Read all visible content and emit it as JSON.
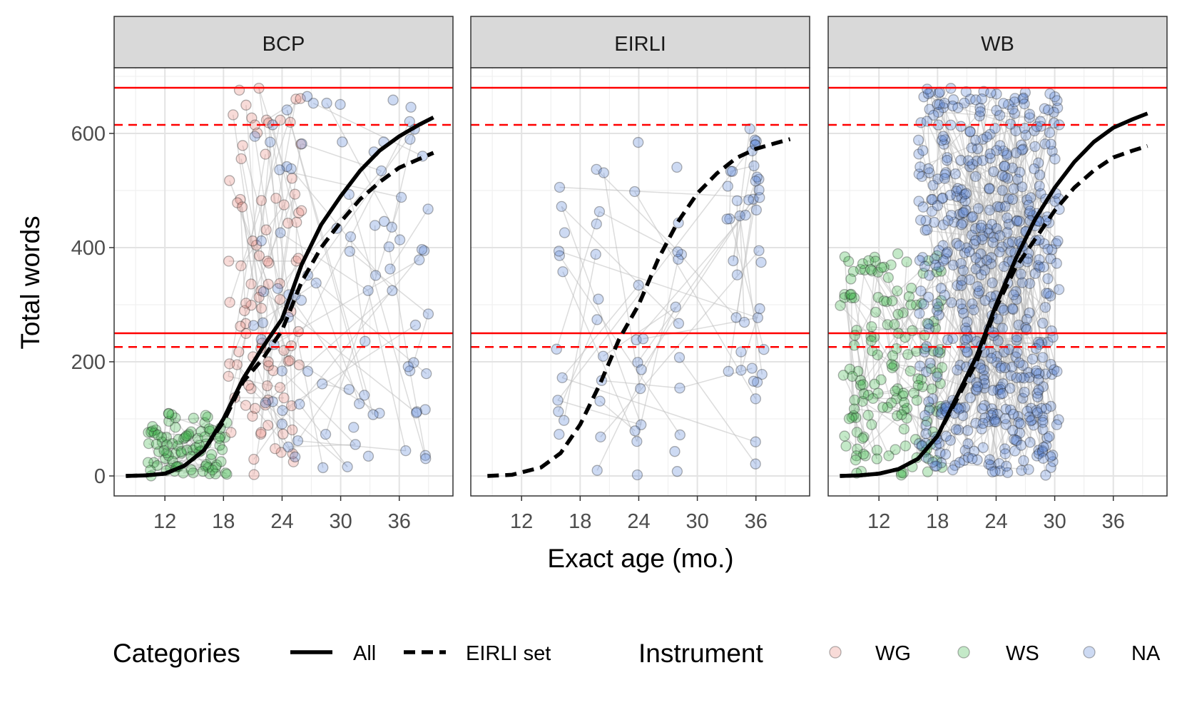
{
  "chart_data": {
    "type": "scatter",
    "ylabel": "Total words",
    "xlabel": "Exact age (mo.)",
    "xlim": [
      6.8,
      41.5
    ],
    "ylim": [
      -35,
      715
    ],
    "x_ticks": [
      12,
      18,
      24,
      30,
      36
    ],
    "y_ticks": [
      0,
      200,
      400,
      600
    ],
    "grid": true,
    "colors": {
      "WG": "#e8877f",
      "WS": "#3cb54a",
      "NA": "#5b86d6",
      "solid_fit": "#000000",
      "ref_lines": "#ff0000",
      "strip_bg": "#d9d9d9",
      "connector": "#c0c0c0"
    },
    "reference_lines": [
      {
        "y": 680,
        "style": "solid"
      },
      {
        "y": 615,
        "style": "dashed"
      },
      {
        "y": 250,
        "style": "solid"
      },
      {
        "y": 226,
        "style": "dashed"
      }
    ],
    "legends": {
      "categories": {
        "title": "Categories",
        "entries": [
          {
            "label": "All",
            "style": "solid"
          },
          {
            "label": "EIRLI set",
            "style": "dashed"
          }
        ]
      },
      "instrument": {
        "title": "Instrument",
        "entries": [
          {
            "label": "WG",
            "color": "#e8877f"
          },
          {
            "label": "WS",
            "color": "#3cb54a"
          },
          {
            "label": "NA",
            "color": "#5b86d6"
          }
        ]
      }
    },
    "panels": [
      {
        "label": "BCP",
        "fits": [
          {
            "series": "All",
            "style": "solid",
            "points": [
              [
                8,
                0
              ],
              [
                10,
                1
              ],
              [
                12,
                4
              ],
              [
                14,
                18
              ],
              [
                16,
                45
              ],
              [
                18,
                100
              ],
              [
                20,
                170
              ],
              [
                22,
                225
              ],
              [
                24,
                275
              ],
              [
                26,
                370
              ],
              [
                28,
                440
              ],
              [
                30,
                490
              ],
              [
                32,
                535
              ],
              [
                34,
                570
              ],
              [
                36,
                595
              ],
              [
                38,
                615
              ],
              [
                39.5,
                628
              ]
            ]
          },
          {
            "series": "EIRLI set",
            "style": "dashed",
            "points": [
              [
                8,
                0
              ],
              [
                10,
                1
              ],
              [
                12,
                4
              ],
              [
                14,
                18
              ],
              [
                16,
                45
              ],
              [
                18,
                95
              ],
              [
                20,
                165
              ],
              [
                22,
                205
              ],
              [
                24,
                255
              ],
              [
                26,
                340
              ],
              [
                28,
                400
              ],
              [
                30,
                445
              ],
              [
                32,
                485
              ],
              [
                34,
                515
              ],
              [
                36,
                540
              ],
              [
                38,
                555
              ],
              [
                39.5,
                566
              ]
            ]
          }
        ],
        "scatter_groups": [
          {
            "instrument": "WS",
            "x_range": [
              10,
              18.5
            ],
            "y_range": [
              0,
              110
            ],
            "count": 90,
            "seed": 11
          },
          {
            "instrument": "WG",
            "x_range": [
              18.5,
              26
            ],
            "y_range": [
              0,
              680
            ],
            "count": 95,
            "seed": 12
          },
          {
            "instrument": "NA",
            "x_range": [
              21,
              39
            ],
            "y_range": [
              10,
              680
            ],
            "count": 90,
            "seed": 13
          }
        ]
      },
      {
        "label": "EIRLI",
        "fits": [
          {
            "series": "EIRLI set",
            "style": "dashed",
            "points": [
              [
                8.5,
                0
              ],
              [
                11,
                2
              ],
              [
                14,
                15
              ],
              [
                16,
                40
              ],
              [
                18,
                90
              ],
              [
                20,
                160
              ],
              [
                22,
                240
              ],
              [
                24,
                300
              ],
              [
                26,
                380
              ],
              [
                28,
                445
              ],
              [
                30,
                495
              ],
              [
                32,
                530
              ],
              [
                34,
                557
              ],
              [
                36,
                573
              ],
              [
                38,
                583
              ],
              [
                39.5,
                590
              ]
            ]
          }
        ],
        "scatter_groups": [
          {
            "instrument": "NA",
            "x_columns": [
              16,
              20,
              24,
              28,
              36
            ],
            "y_range": [
              0,
              615
            ],
            "count": 60,
            "seed": 21
          },
          {
            "instrument": "NA",
            "x_range": [
              33,
              37
            ],
            "y_range": [
              150,
              615
            ],
            "count": 30,
            "seed": 22
          }
        ]
      },
      {
        "label": "WB",
        "fits": [
          {
            "series": "All",
            "style": "solid",
            "points": [
              [
                8,
                0
              ],
              [
                10,
                1
              ],
              [
                12,
                4
              ],
              [
                14,
                12
              ],
              [
                16,
                30
              ],
              [
                18,
                70
              ],
              [
                20,
                140
              ],
              [
                22,
                210
              ],
              [
                24,
                300
              ],
              [
                26,
                380
              ],
              [
                28,
                450
              ],
              [
                30,
                505
              ],
              [
                32,
                550
              ],
              [
                34,
                585
              ],
              [
                36,
                610
              ],
              [
                38,
                625
              ],
              [
                39.5,
                635
              ]
            ]
          },
          {
            "series": "EIRLI set",
            "style": "dashed",
            "points": [
              [
                8,
                0
              ],
              [
                10,
                1
              ],
              [
                12,
                4
              ],
              [
                14,
                12
              ],
              [
                16,
                30
              ],
              [
                18,
                70
              ],
              [
                20,
                135
              ],
              [
                22,
                200
              ],
              [
                24,
                295
              ],
              [
                26,
                365
              ],
              [
                28,
                415
              ],
              [
                30,
                465
              ],
              [
                32,
                505
              ],
              [
                34,
                535
              ],
              [
                36,
                558
              ],
              [
                38,
                570
              ],
              [
                39.5,
                578
              ]
            ]
          }
        ],
        "scatter_groups": [
          {
            "instrument": "WS",
            "x_range": [
              8,
              18.5
            ],
            "y_range": [
              0,
              390
            ],
            "count": 160,
            "seed": 31
          },
          {
            "instrument": "NA",
            "x_range": [
              16,
              30.5
            ],
            "y_range": [
              0,
              680
            ],
            "count": 520,
            "seed": 32
          },
          {
            "instrument": "NA",
            "x_range": [
              17,
              30
            ],
            "y_range": [
              300,
              680
            ],
            "count": 40,
            "seed": 33
          }
        ]
      }
    ]
  }
}
